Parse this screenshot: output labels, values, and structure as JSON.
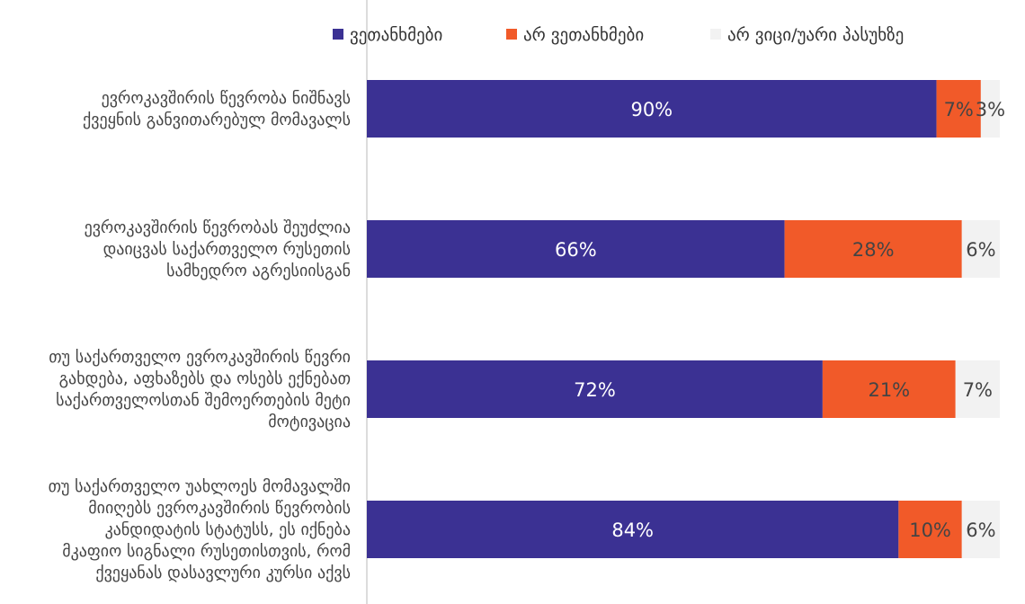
{
  "chart_data": {
    "type": "bar",
    "orientation": "horizontal",
    "stacked": true,
    "unit": "%",
    "legend_position": "top",
    "grid": false,
    "xlim": [
      0,
      100
    ],
    "categories": [
      [
        "ევროკავშირის წევრობა  ნიშნავს",
        "ქვეყნის განვითარებულ მომავალს"
      ],
      [
        "ევროკავშირის წევრობას შეუძლია",
        "დაიცვას საქართველო რუსეთის",
        "სამხედრო აგრესიისგან"
      ],
      [
        "თუ საქართველო ევროკავშირის წევრი",
        "გახდება, აფხაზებს და ოსებს ექნებათ",
        "საქართველოსთან შემოერთების მეტი",
        "მოტივაცია"
      ],
      [
        "თუ საქართველო უახლოეს მომავალში",
        "მიიღებს ევროკავშირის წევრობის",
        "კანდიდატის სტატუსს, ეს იქნება",
        "მკაფიო სიგნალი რუსეთისთვის, რომ",
        "ქვეყანას დასავლური კურსი აქვს"
      ]
    ],
    "series": [
      {
        "name": "ვეთანხმები",
        "color": "#3b3193",
        "values": [
          90,
          66,
          72,
          84
        ],
        "labels": [
          "90%",
          "66%",
          "72%",
          "84%"
        ]
      },
      {
        "name": "არ ვეთანხმები",
        "color": "#f15a29",
        "values": [
          7,
          28,
          21,
          10
        ],
        "labels": [
          "7%",
          "28%",
          "21%",
          "10%"
        ]
      },
      {
        "name": "არ ვიცი/უარი პასუხზე",
        "color": "#f2f2f2",
        "values": [
          3,
          6,
          7,
          6
        ],
        "labels": [
          "3%",
          "6%",
          "7%",
          "6%"
        ]
      }
    ],
    "colors": {
      "axis_line": "#d0d0d0",
      "text": "#444444",
      "label_on_dark": "#ffffff",
      "label_on_light": "#444444"
    }
  }
}
